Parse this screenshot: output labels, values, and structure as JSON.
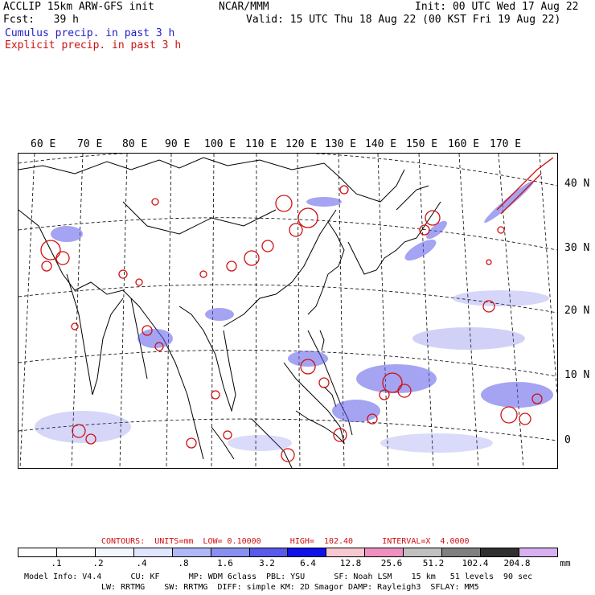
{
  "header": {
    "line1_left": "ACCLIP 15km ARW-GFS init",
    "line1_mid": "NCAR/MMM",
    "line1_right": "Init: 00 UTC Wed 17 Aug 22",
    "line2_left": "Fcst:   39 h",
    "line2_right": "Valid: 15 UTC Thu 18 Aug 22 (00 KST Fri 19 Aug 22)",
    "line3": "Cumulus precip. in past 3 h",
    "line4": "Explicit precip. in past 3 h"
  },
  "longitude_labels": [
    "60 E",
    "70 E",
    "80 E",
    "90 E",
    "100 E",
    "110 E",
    "120 E",
    "130 E",
    "140 E",
    "150 E",
    "160 E",
    "170 E"
  ],
  "latitude_labels": [
    "40 N",
    "30 N",
    "20 N",
    "10 N",
    "0"
  ],
  "contours_line": "CONTOURS:  UNITS=mm  LOW= 0.10000      HIGH=  102.40      INTERVAL=X  4.0000",
  "colorbar": {
    "colors": [
      "#ffffff",
      "#ffffff",
      "#f4f6ff",
      "#e0e6ff",
      "#b0b8f8",
      "#8890f0",
      "#5a5ae8",
      "#1010e8",
      "#f8c8d0",
      "#f090c0",
      "#c0c0c0",
      "#808080",
      "#303030",
      "#d8b0f0"
    ],
    "ticks": [
      ".1",
      ".2",
      ".4",
      ".8",
      "1.6",
      "3.2",
      "6.4",
      "12.8",
      "25.6",
      "51.2",
      "102.4",
      "204.8"
    ],
    "unit": "mm"
  },
  "footer": {
    "line1": "Model Info: V4.4      CU: KF      MP: WDM 6class  PBL: YSU      SF: Noah LSM    15 km   51 levels  90 sec",
    "line2": "LW: RRTMG    SW: RRTMG  DIFF: simple KM: 2D Smagor DAMP: Rayleigh3  SFLAY: MM5"
  },
  "colors": {
    "cumulus": "#2020c8",
    "explicit": "#d01010"
  }
}
